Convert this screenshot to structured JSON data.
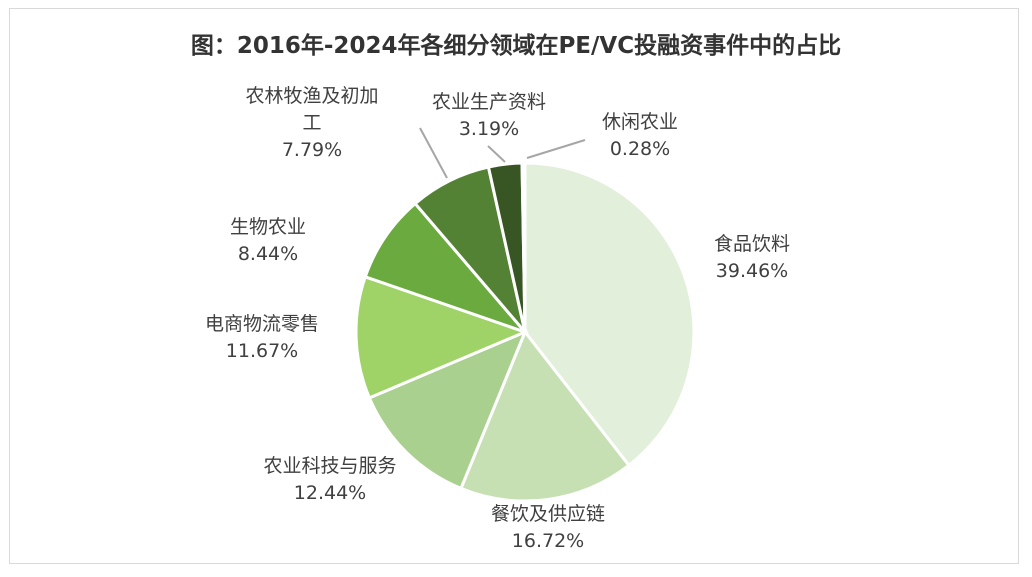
{
  "chart_data": {
    "type": "pie",
    "title": "图：2016年-2024年各细分领域在PE/VC投融资事件中的占比",
    "slices": [
      {
        "label": "食品饮料",
        "value": 39.46,
        "display": "39.46%",
        "color": "#e2efda"
      },
      {
        "label": "餐饮及供应链",
        "value": 16.72,
        "display": "16.72%",
        "color": "#c6e0b4"
      },
      {
        "label": "农业科技与服务",
        "value": 12.44,
        "display": "12.44%",
        "color": "#a9d08e"
      },
      {
        "label": "电商物流零售",
        "value": 11.67,
        "display": "11.67%",
        "color": "#9fd367"
      },
      {
        "label": "生物农业",
        "value": 8.44,
        "display": "8.44%",
        "color": "#6aaa3e"
      },
      {
        "label": "农林牧渔及初加工",
        "value": 7.79,
        "display": "7.79%",
        "color": "#548235"
      },
      {
        "label": "农业生产资料",
        "value": 3.19,
        "display": "3.19%",
        "color": "#375623"
      },
      {
        "label": "休闲农业",
        "value": 0.28,
        "display": "0.28%",
        "color": "#f2f8ee"
      }
    ]
  }
}
